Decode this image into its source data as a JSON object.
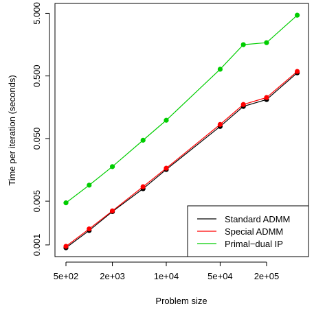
{
  "chart_data": {
    "type": "line",
    "x_label": "Problem size",
    "y_label": "Time per iteration (seconds)",
    "x": [
      500,
      1000,
      2000,
      5000,
      10000,
      50000,
      100000,
      200000,
      500000
    ],
    "series": [
      {
        "name": "Standard ADMM",
        "color": "#000000",
        "values": [
          0.0009,
          0.0017,
          0.0034,
          0.0079,
          0.016,
          0.078,
          0.163,
          0.21,
          0.56
        ]
      },
      {
        "name": "Special ADMM",
        "color": "#ff0000",
        "values": [
          0.00095,
          0.0018,
          0.0035,
          0.0085,
          0.0168,
          0.084,
          0.175,
          0.226,
          0.59
        ]
      },
      {
        "name": "Primal−dual IP",
        "color": "#00cd00",
        "values": [
          0.0047,
          0.009,
          0.0178,
          0.047,
          0.098,
          0.64,
          1.58,
          1.7,
          4.67
        ]
      }
    ],
    "xlog": true,
    "ylog": true,
    "xlim": [
      360,
      700000
    ],
    "ylim": [
      0.00065,
      7.2
    ],
    "xticks": [
      {
        "value": 500,
        "label": "5e+02"
      },
      {
        "value": 2000,
        "label": "2e+03"
      },
      {
        "value": 10000,
        "label": "1e+04"
      },
      {
        "value": 50000,
        "label": "5e+04"
      },
      {
        "value": 200000,
        "label": "2e+05"
      }
    ],
    "yticks": [
      0.001,
      0.005,
      {
        "value": 0.05,
        "label": "0.050"
      },
      {
        "value": 0.5,
        "label": "0.500"
      },
      {
        "value": 5,
        "label": "5.000"
      }
    ],
    "legend": "bottomright"
  }
}
